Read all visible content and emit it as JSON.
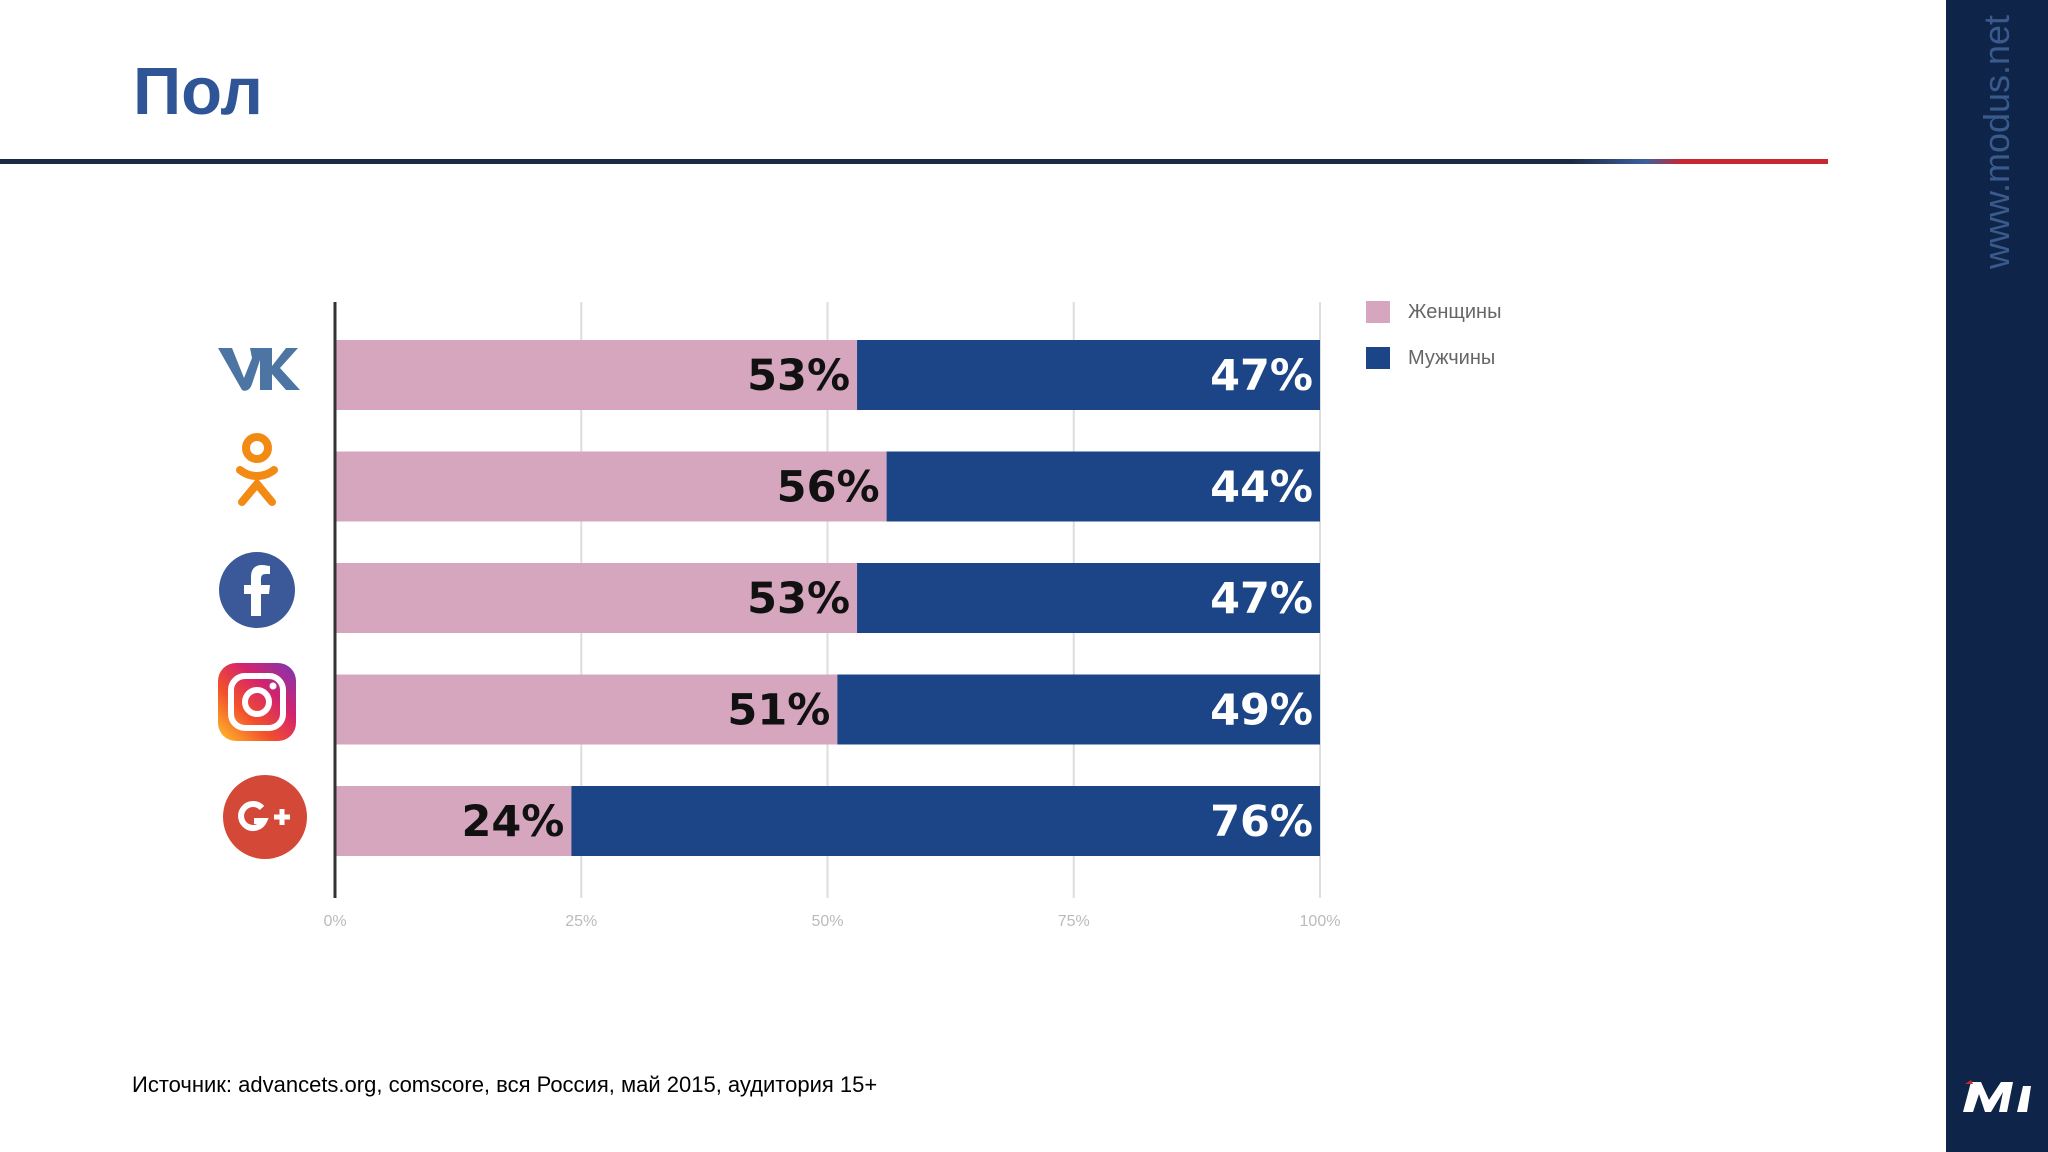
{
  "title": "Пол",
  "side_url": "www.modus.net",
  "source": "Источник: advancets.org, comscore, вся Россия, май 2015, аудитория 15+",
  "colors": {
    "women": "#d5a6bd",
    "men": "#1c4587",
    "title": "#2f5597",
    "sidebar": "#0e2448"
  },
  "chart_data": {
    "type": "bar",
    "orientation": "horizontal",
    "stacked": true,
    "categories": [
      "vk-icon",
      "odnoklassniki-icon",
      "facebook-icon",
      "instagram-icon",
      "google-plus-icon"
    ],
    "series": [
      {
        "name": "Женщины",
        "values": [
          53,
          56,
          53,
          51,
          24
        ],
        "labels": [
          "53%",
          "56%",
          "53%",
          "51%",
          "24%"
        ]
      },
      {
        "name": "Мужчины",
        "values": [
          47,
          44,
          47,
          49,
          76
        ],
        "labels": [
          "47%",
          "44%",
          "47%",
          "49%",
          "76%"
        ]
      }
    ],
    "xlim": [
      0,
      100
    ],
    "xticks": [
      0,
      25,
      50,
      75,
      100
    ],
    "xtick_labels": [
      "0%",
      "25%",
      "50%",
      "75%",
      "100%"
    ],
    "grid": true,
    "legend_position": "top-right"
  }
}
